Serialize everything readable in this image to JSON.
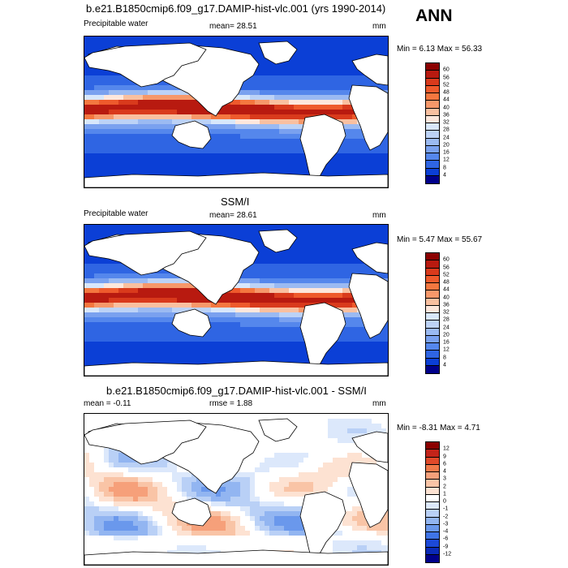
{
  "season": "ANN",
  "panels": [
    {
      "title": "b.e21.B1850cmip6.f09_g17.DAMIP-hist-vlc.001 (yrs 1990-2014)",
      "left_label": "Precipitable water",
      "mid_label": "mean=  28.51",
      "units": "mm",
      "minmax": "Min =   6.13 Max =  56.33",
      "colorbar": [
        "60",
        "56",
        "52",
        "48",
        "44",
        "40",
        "36",
        "32",
        "28",
        "24",
        "20",
        "16",
        "12",
        "8",
        "4"
      ],
      "colors": [
        "#8b0000",
        "#b81a10",
        "#d93a1c",
        "#ee5a2c",
        "#f4773f",
        "#f6986a",
        "#f9c0a0",
        "#fde7dc",
        "#d8e7fb",
        "#bcd2f6",
        "#9bbaf2",
        "#7aa1ef",
        "#5587ec",
        "#2f65e3",
        "#0b3fd6",
        "#00008b"
      ]
    },
    {
      "title": "SSM/I",
      "left_label": "Precipitable water",
      "mid_label": "mean=  28.61",
      "units": "mm",
      "minmax": "Min =   5.47 Max =  55.67",
      "colorbar": [
        "60",
        "56",
        "52",
        "48",
        "44",
        "40",
        "36",
        "32",
        "28",
        "24",
        "20",
        "16",
        "12",
        "8",
        "4"
      ],
      "colors": [
        "#8b0000",
        "#b81a10",
        "#d93a1c",
        "#ee5a2c",
        "#f4773f",
        "#f6986a",
        "#f9c0a0",
        "#fde7dc",
        "#d8e7fb",
        "#bcd2f6",
        "#9bbaf2",
        "#7aa1ef",
        "#5587ec",
        "#2f65e3",
        "#0b3fd6",
        "#00008b"
      ]
    },
    {
      "title": "b.e21.B1850cmip6.f09_g17.DAMIP-hist-vlc.001 - SSM/I",
      "left_label": "mean =  -0.11",
      "mid_label": "rmse =   1.88",
      "units": "mm",
      "minmax": "Min =  -8.31 Max =   4.71",
      "colorbar": [
        "12",
        "9",
        "6",
        "4",
        "3",
        "2",
        "1",
        "0",
        "-1",
        "-2",
        "-3",
        "-4",
        "-6",
        "-9",
        "-12"
      ],
      "colors": [
        "#8b0000",
        "#c2241a",
        "#e04a2a",
        "#f07a4a",
        "#f6a07a",
        "#f9c4a6",
        "#fde2d2",
        "#ffffff",
        "#dce8fb",
        "#b9d0f6",
        "#92b5f1",
        "#6a98ec",
        "#3f74e6",
        "#1c49d8",
        "#0a2ab8",
        "#00008b"
      ]
    }
  ]
}
